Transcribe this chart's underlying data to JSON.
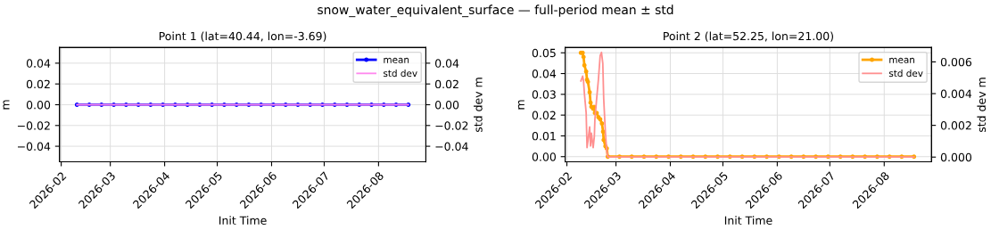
{
  "chart_data": [
    {
      "type": "line",
      "title": "Point 1 (lat=40.44, lon=-3.69)",
      "annotations": [
        "snow_water_equivalent_surface — full-period mean ± std"
      ],
      "xlabel": "Init Time",
      "ylabel": "m",
      "y2label": "std dev m",
      "legend": "top right",
      "grid": true,
      "xlim": [
        "2026-01-31",
        "2026-08-28"
      ],
      "xticks": [
        {
          "value": "2026-02-01",
          "label": "2026-02"
        },
        {
          "value": "2026-03-01",
          "label": "2026-03"
        },
        {
          "value": "2026-04-01",
          "label": "2026-04"
        },
        {
          "value": "2026-05-01",
          "label": "2026-05"
        },
        {
          "value": "2026-06-01",
          "label": "2026-06"
        },
        {
          "value": "2026-07-01",
          "label": "2026-07"
        },
        {
          "value": "2026-08-01",
          "label": "2026-08"
        }
      ],
      "ylim": [
        -0.055,
        0.055
      ],
      "yticks": [
        {
          "value": -0.04,
          "label": "−0.04"
        },
        {
          "value": -0.02,
          "label": "−0.02"
        },
        {
          "value": 0,
          "label": "0.00"
        },
        {
          "value": 0.02,
          "label": "0.02"
        },
        {
          "value": 0.04,
          "label": "0.04"
        }
      ],
      "y2lim": [
        -0.055,
        0.055
      ],
      "y2ticks": [
        {
          "value": -0.04,
          "label": "−0.04"
        },
        {
          "value": -0.02,
          "label": "−0.02"
        },
        {
          "value": 0,
          "label": "0.00"
        },
        {
          "value": 0.02,
          "label": "0.02"
        },
        {
          "value": 0.04,
          "label": "0.04"
        }
      ],
      "series": [
        {
          "name": "mean",
          "color": "#0000ff",
          "marker": "circle",
          "x": [
            "2026-02-10",
            "2026-02-17",
            "2026-02-24",
            "2026-03-03",
            "2026-03-10",
            "2026-03-17",
            "2026-03-24",
            "2026-03-31",
            "2026-04-07",
            "2026-04-14",
            "2026-04-21",
            "2026-04-28",
            "2026-05-05",
            "2026-05-12",
            "2026-05-19",
            "2026-05-26",
            "2026-06-02",
            "2026-06-09",
            "2026-06-16",
            "2026-06-23",
            "2026-06-30",
            "2026-07-07",
            "2026-07-14",
            "2026-07-21",
            "2026-07-28",
            "2026-08-04",
            "2026-08-11",
            "2026-08-18"
          ],
          "values": [
            0,
            0,
            0,
            0,
            0,
            0,
            0,
            0,
            0,
            0,
            0,
            0,
            0,
            0,
            0,
            0,
            0,
            0,
            0,
            0,
            0,
            0,
            0,
            0,
            0,
            0,
            0,
            0
          ]
        },
        {
          "name": "std dev",
          "color": "#ff88ee",
          "axis": "y2",
          "x": [
            "2026-02-10",
            "2026-08-18"
          ],
          "values": [
            0,
            0
          ]
        }
      ]
    },
    {
      "type": "line",
      "title": "Point 2 (lat=52.25, lon=21.00)",
      "xlabel": "Init Time",
      "ylabel": "m",
      "y2label": "std dev m",
      "legend": "top right",
      "grid": true,
      "xlim": [
        "2026-01-31",
        "2026-08-28"
      ],
      "xticks": [
        {
          "value": "2026-02-01",
          "label": "2026-02"
        },
        {
          "value": "2026-03-01",
          "label": "2026-03"
        },
        {
          "value": "2026-04-01",
          "label": "2026-04"
        },
        {
          "value": "2026-05-01",
          "label": "2026-05"
        },
        {
          "value": "2026-06-01",
          "label": "2026-06"
        },
        {
          "value": "2026-07-01",
          "label": "2026-07"
        },
        {
          "value": "2026-08-01",
          "label": "2026-08"
        }
      ],
      "ylim": [
        -0.0025,
        0.0525
      ],
      "yticks": [
        {
          "value": 0,
          "label": "0.00"
        },
        {
          "value": 0.01,
          "label": "0.01"
        },
        {
          "value": 0.02,
          "label": "0.02"
        },
        {
          "value": 0.03,
          "label": "0.03"
        },
        {
          "value": 0.04,
          "label": "0.04"
        },
        {
          "value": 0.05,
          "label": "0.05"
        }
      ],
      "y2lim": [
        -0.0003,
        0.0069
      ],
      "y2ticks": [
        {
          "value": 0,
          "label": "0.000"
        },
        {
          "value": 0.002,
          "label": "0.002"
        },
        {
          "value": 0.004,
          "label": "0.004"
        },
        {
          "value": 0.006,
          "label": "0.006"
        }
      ],
      "series": [
        {
          "name": "std dev",
          "color": "#ff9090",
          "axis": "y2",
          "x": [
            "2026-02-09",
            "2026-02-10",
            "2026-02-10T12:00",
            "2026-02-11",
            "2026-02-12",
            "2026-02-12T12:00",
            "2026-02-13",
            "2026-02-14",
            "2026-02-14T12:00",
            "2026-02-15",
            "2026-02-16",
            "2026-02-16T16:00",
            "2026-02-17",
            "2026-02-18",
            "2026-02-19",
            "2026-02-20",
            "2026-02-20T18:00",
            "2026-02-21T12:00",
            "2026-02-22",
            "2026-02-23",
            "2026-02-23T18:00",
            "2026-02-24T08:00",
            "2026-03-03",
            "2026-03-17",
            "2026-03-31",
            "2026-04-14",
            "2026-04-28",
            "2026-05-12",
            "2026-05-26",
            "2026-06-09",
            "2026-06-23",
            "2026-07-07",
            "2026-07-21",
            "2026-08-04",
            "2026-08-18"
          ],
          "values": [
            0.0048,
            0.0051,
            0.0048,
            0.004,
            0.0028,
            0.0006,
            0.001,
            0.0019,
            0.0007,
            0.0015,
            0.0006,
            0.0013,
            0.0024,
            0.0037,
            0.0049,
            0.0064,
            0.0066,
            0.0059,
            0.0037,
            0.0015,
            0.0004,
            0,
            0,
            0,
            0,
            0,
            0,
            0,
            0,
            0,
            0,
            0,
            0,
            0,
            0
          ]
        },
        {
          "name": "mean",
          "color": "#ffa500",
          "marker": "circle",
          "x": [
            "2026-02-09",
            "2026-02-10",
            "2026-02-10T12:00",
            "2026-02-11",
            "2026-02-12",
            "2026-02-12T12:00",
            "2026-02-13",
            "2026-02-14",
            "2026-02-14T12:00",
            "2026-02-15",
            "2026-02-16",
            "2026-02-16T12:00",
            "2026-02-17",
            "2026-02-18",
            "2026-02-19",
            "2026-02-20",
            "2026-02-21",
            "2026-02-21T16:00",
            "2026-02-22",
            "2026-02-23",
            "2026-02-23T18:00",
            "2026-02-24T08:00",
            "2026-03-03",
            "2026-03-10",
            "2026-03-17",
            "2026-03-24",
            "2026-03-31",
            "2026-04-07",
            "2026-04-14",
            "2026-04-21",
            "2026-04-28",
            "2026-05-05",
            "2026-05-12",
            "2026-05-19",
            "2026-05-26",
            "2026-06-02",
            "2026-06-09",
            "2026-06-16",
            "2026-06-23",
            "2026-06-30",
            "2026-07-07",
            "2026-07-14",
            "2026-07-21",
            "2026-07-28",
            "2026-08-04",
            "2026-08-11",
            "2026-08-18"
          ],
          "values": [
            0.05,
            0.05,
            0.048,
            0.044,
            0.041,
            0.037,
            0.036,
            0.031,
            0.026,
            0.024,
            0.023,
            0.024,
            0.021,
            0.021,
            0.019,
            0.018,
            0.016,
            0.012,
            0.008,
            0.005,
            0.004,
            0,
            0,
            0,
            0,
            0,
            0,
            0,
            0,
            0,
            0,
            0,
            0,
            0,
            0,
            0,
            0,
            0,
            0,
            0,
            0,
            0,
            0,
            0,
            0,
            0,
            0
          ]
        }
      ]
    }
  ]
}
